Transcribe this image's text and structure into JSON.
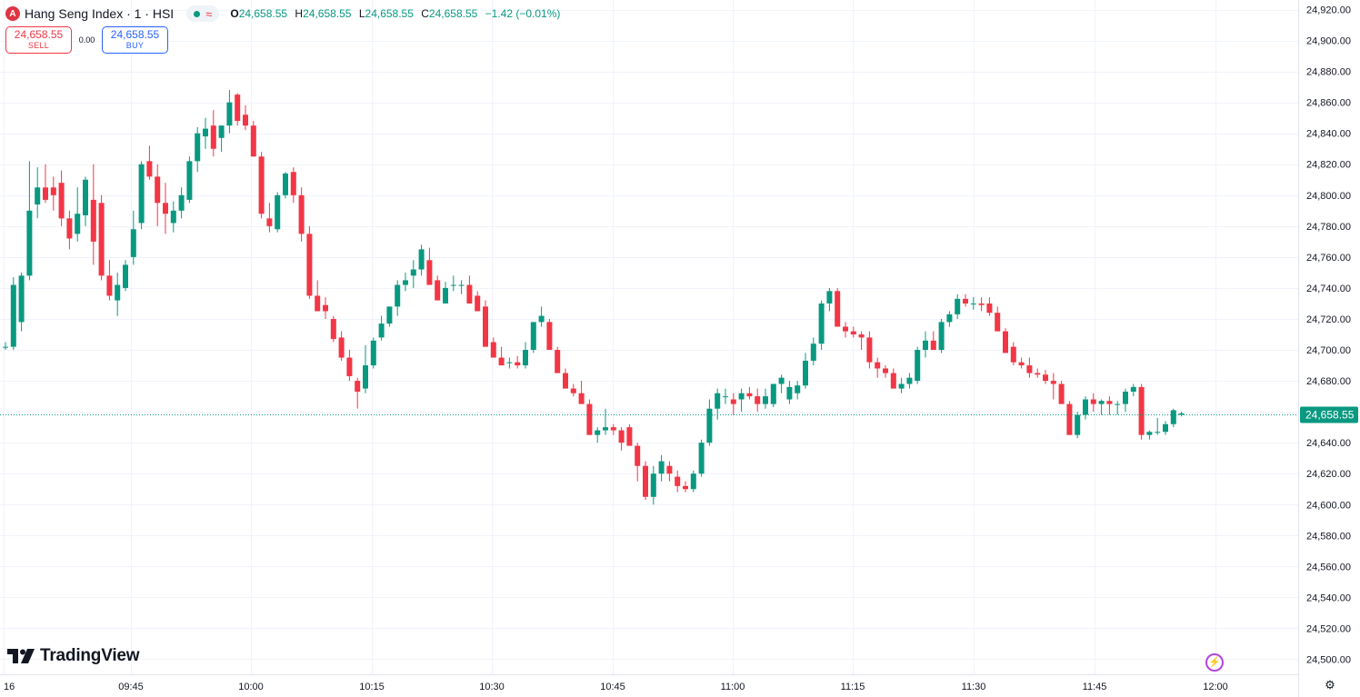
{
  "header": {
    "symbol_badge": "A",
    "title": "Hang Seng Index · 1 · HSI",
    "status_wave": "≈",
    "ohlc": {
      "o_label": "O",
      "o": "24,658.55",
      "h_label": "H",
      "h": "24,658.55",
      "l_label": "L",
      "l": "24,658.55",
      "c_label": "C",
      "c": "24,658.55",
      "change": "−1.42 (−0.01%)"
    }
  },
  "trade": {
    "sell_price": "24,658.55",
    "sell_label": "SELL",
    "spread": "0.00",
    "buy_price": "24,658.55",
    "buy_label": "BUY"
  },
  "branding": {
    "text": "TradingView"
  },
  "colors": {
    "up": "#089981",
    "down": "#f23645",
    "grid": "#f0f3fa",
    "text": "#131722"
  },
  "chart_data": {
    "type": "candlestick",
    "interval": "1",
    "start_time": "09:30",
    "ylim": [
      24495,
      24925
    ],
    "y_ticks": [
      24500,
      24520,
      24540,
      24560,
      24580,
      24600,
      24620,
      24640,
      24660,
      24680,
      24700,
      24720,
      24740,
      24760,
      24780,
      24800,
      24820,
      24840,
      24860,
      24880,
      24900,
      24920
    ],
    "x_tick_labels": [
      "16",
      "09:45",
      "10:00",
      "10:15",
      "10:30",
      "10:45",
      "11:00",
      "11:15",
      "11:30",
      "11:45",
      "12:00"
    ],
    "last_price": 24658.55,
    "last_price_label": "24,658.55",
    "ohlc": [
      [
        24702,
        24705,
        24700,
        24702
      ],
      [
        24702,
        24747,
        24700,
        24742
      ],
      [
        24718,
        24750,
        24712,
        24748
      ],
      [
        24748,
        24822,
        24745,
        24790
      ],
      [
        24794,
        24818,
        24785,
        24805
      ],
      [
        24805,
        24820,
        24795,
        24797
      ],
      [
        24805,
        24812,
        24790,
        24800
      ],
      [
        24808,
        24816,
        24780,
        24785
      ],
      [
        24785,
        24790,
        24765,
        24772
      ],
      [
        24775,
        24805,
        24770,
        24788
      ],
      [
        24787,
        24812,
        24780,
        24810
      ],
      [
        24797,
        24820,
        24755,
        24770
      ],
      [
        24795,
        24800,
        24745,
        24748
      ],
      [
        24748,
        24758,
        24732,
        24735
      ],
      [
        24732,
        24750,
        24722,
        24742
      ],
      [
        24740,
        24758,
        24738,
        24755
      ],
      [
        24760,
        24790,
        24755,
        24778
      ],
      [
        24782,
        24822,
        24778,
        24820
      ],
      [
        24822,
        24832,
        24810,
        24812
      ],
      [
        24812,
        24820,
        24780,
        24795
      ],
      [
        24795,
        24808,
        24775,
        24788
      ],
      [
        24782,
        24796,
        24776,
        24790
      ],
      [
        24790,
        24805,
        24785,
        24800
      ],
      [
        24797,
        24825,
        24795,
        24822
      ],
      [
        24822,
        24844,
        24815,
        24840
      ],
      [
        24838,
        24850,
        24830,
        24843
      ],
      [
        24845,
        24855,
        24825,
        24830
      ],
      [
        24837,
        24845,
        24828,
        24845
      ],
      [
        24845,
        24868,
        24840,
        24860
      ],
      [
        24865,
        24866,
        24845,
        24848
      ],
      [
        24852,
        24858,
        24842,
        24845
      ],
      [
        24845,
        24848,
        24825,
        24825
      ],
      [
        24825,
        24828,
        24785,
        24788
      ],
      [
        24785,
        24795,
        24776,
        24780
      ],
      [
        24778,
        24802,
        24776,
        24800
      ],
      [
        24800,
        24815,
        24798,
        24814
      ],
      [
        24815,
        24818,
        24795,
        24800
      ],
      [
        24800,
        24805,
        24770,
        24775
      ],
      [
        24775,
        24780,
        24733,
        24735
      ],
      [
        24735,
        24745,
        24725,
        24725
      ],
      [
        24729,
        24734,
        24720,
        24725
      ],
      [
        24720,
        24722,
        24705,
        24707
      ],
      [
        24708,
        24712,
        24693,
        24695
      ],
      [
        24695,
        24700,
        24680,
        24683
      ],
      [
        24680,
        24682,
        24662,
        24673
      ],
      [
        24675,
        24703,
        24672,
        24690
      ],
      [
        24690,
        24708,
        24688,
        24706
      ],
      [
        24708,
        24722,
        24706,
        24717
      ],
      [
        24717,
        24728,
        24715,
        24728
      ],
      [
        24728,
        24745,
        24722,
        24742
      ],
      [
        24742,
        24750,
        24738,
        24745
      ],
      [
        24748,
        24758,
        24740,
        24752
      ],
      [
        24752,
        24768,
        24748,
        24765
      ],
      [
        24758,
        24766,
        24742,
        24742
      ],
      [
        24745,
        24748,
        24732,
        24732
      ],
      [
        24730,
        24744,
        24730,
        24740
      ],
      [
        24742,
        24748,
        24738,
        24742
      ],
      [
        24742,
        24745,
        24736,
        24742
      ],
      [
        24742,
        24748,
        24730,
        24730
      ],
      [
        24735,
        24738,
        24725,
        24725
      ],
      [
        24728,
        24732,
        24702,
        24702
      ],
      [
        24705,
        24708,
        24695,
        24695
      ],
      [
        24695,
        24702,
        24690,
        24690
      ],
      [
        24692,
        24695,
        24688,
        24692
      ],
      [
        24692,
        24696,
        24688,
        24690
      ],
      [
        24690,
        24705,
        24688,
        24700
      ],
      [
        24700,
        24718,
        24698,
        24718
      ],
      [
        24718,
        24728,
        24715,
        24722
      ],
      [
        24718,
        24720,
        24700,
        24700
      ],
      [
        24700,
        24702,
        24685,
        24685
      ],
      [
        24685,
        24688,
        24675,
        24675
      ],
      [
        24675,
        24678,
        24670,
        24672
      ],
      [
        24672,
        24680,
        24668,
        24665
      ],
      [
        24665,
        24668,
        24645,
        24645
      ],
      [
        24645,
        24650,
        24640,
        24648
      ],
      [
        24648,
        24662,
        24645,
        24650
      ],
      [
        24650,
        24652,
        24645,
        24648
      ],
      [
        24648,
        24650,
        24635,
        24640
      ],
      [
        24650,
        24652,
        24638,
        24638
      ],
      [
        24638,
        24640,
        24615,
        24625
      ],
      [
        24625,
        24628,
        24603,
        24605
      ],
      [
        24605,
        24625,
        24600,
        24620
      ],
      [
        24620,
        24632,
        24615,
        24628
      ],
      [
        24625,
        24628,
        24615,
        24620
      ],
      [
        24618,
        24622,
        24608,
        24612
      ],
      [
        24612,
        24615,
        24608,
        24610
      ],
      [
        24610,
        24622,
        24608,
        24620
      ],
      [
        24620,
        24642,
        24618,
        24640
      ],
      [
        24640,
        24668,
        24638,
        24662
      ],
      [
        24662,
        24675,
        24655,
        24672
      ],
      [
        24670,
        24675,
        24665,
        24670
      ],
      [
        24668,
        24672,
        24658,
        24665
      ],
      [
        24668,
        24675,
        24660,
        24672
      ],
      [
        24672,
        24676,
        24668,
        24670
      ],
      [
        24670,
        24675,
        24660,
        24665
      ],
      [
        24665,
        24675,
        24662,
        24670
      ],
      [
        24665,
        24678,
        24663,
        24678
      ],
      [
        24678,
        24684,
        24672,
        24682
      ],
      [
        24668,
        24680,
        24665,
        24676
      ],
      [
        24672,
        24680,
        24668,
        24677
      ],
      [
        24677,
        24698,
        24675,
        24693
      ],
      [
        24693,
        24708,
        24690,
        24704
      ],
      [
        24704,
        24732,
        24700,
        24730
      ],
      [
        24730,
        24740,
        24725,
        24738
      ],
      [
        24738,
        24740,
        24715,
        24715
      ],
      [
        24715,
        24718,
        24708,
        24712
      ],
      [
        24712,
        24715,
        24708,
        24710
      ],
      [
        24710,
        24712,
        24700,
        24708
      ],
      [
        24708,
        24712,
        24688,
        24692
      ],
      [
        24692,
        24695,
        24682,
        24688
      ],
      [
        24688,
        24690,
        24682,
        24685
      ],
      [
        24685,
        24688,
        24675,
        24675
      ],
      [
        24675,
        24682,
        24672,
        24678
      ],
      [
        24678,
        24685,
        24675,
        24682
      ],
      [
        24680,
        24702,
        24678,
        24700
      ],
      [
        24700,
        24712,
        24695,
        24706
      ],
      [
        24706,
        24712,
        24700,
        24700
      ],
      [
        24700,
        24720,
        24698,
        24718
      ],
      [
        24718,
        24725,
        24715,
        24723
      ],
      [
        24723,
        24736,
        24720,
        24733
      ],
      [
        24733,
        24736,
        24728,
        24730
      ],
      [
        24730,
        24734,
        24726,
        24730
      ],
      [
        24730,
        24734,
        24725,
        24729
      ],
      [
        24730,
        24734,
        24722,
        24724
      ],
      [
        24724,
        24728,
        24712,
        24712
      ],
      [
        24712,
        24714,
        24698,
        24698
      ],
      [
        24702,
        24705,
        24690,
        24692
      ],
      [
        24692,
        24695,
        24688,
        24690
      ],
      [
        24690,
        24695,
        24682,
        24685
      ],
      [
        24685,
        24688,
        24682,
        24684
      ],
      [
        24684,
        24687,
        24678,
        24680
      ],
      [
        24680,
        24685,
        24668,
        24678
      ],
      [
        24678,
        24680,
        24665,
        24665
      ],
      [
        24665,
        24667,
        24645,
        24645
      ],
      [
        24645,
        24660,
        24643,
        24658
      ],
      [
        24658,
        24670,
        24655,
        24668
      ],
      [
        24668,
        24672,
        24660,
        24665
      ],
      [
        24665,
        24668,
        24658,
        24667
      ],
      [
        24667,
        24670,
        24658,
        24665
      ],
      [
        24665,
        24667,
        24658,
        24665
      ],
      [
        24665,
        24675,
        24660,
        24673
      ],
      [
        24673,
        24678,
        24670,
        24676
      ],
      [
        24676,
        24678,
        24642,
        24645
      ],
      [
        24645,
        24648,
        24642,
        24647
      ],
      [
        24647,
        24656,
        24645,
        24647
      ],
      [
        24647,
        24654,
        24645,
        24652
      ],
      [
        24652,
        24662,
        24650,
        24661
      ],
      [
        24658,
        24660,
        24657,
        24659
      ]
    ]
  }
}
